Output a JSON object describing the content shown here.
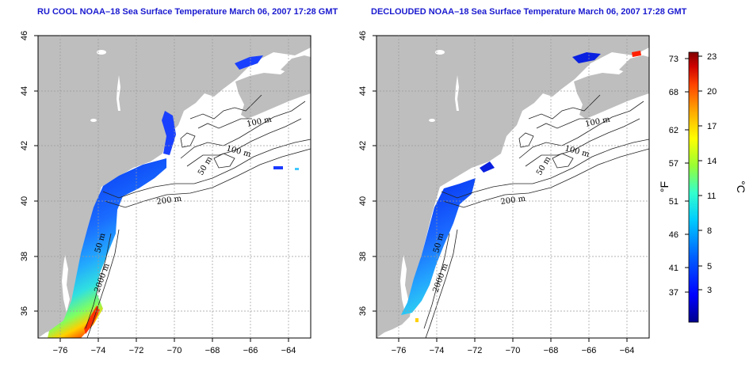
{
  "panels": [
    {
      "title": "RU COOL NOAA–18 Sea Surface Temperature March 06, 2007 17:28 GMT",
      "contour_labels": [
        "100 m",
        "100 m",
        "50 m",
        "200 m",
        "50 m",
        "2000 m"
      ]
    },
    {
      "title": "DECLOUDED NOAA–18 Sea Surface Temperature March 06, 2007 17:28 GMT",
      "contour_labels": [
        "100 m",
        "100 m",
        "50 m",
        "200 m",
        "50 m",
        "2000 m"
      ]
    }
  ],
  "axes": {
    "lon_ticks": [
      "−76",
      "−74",
      "−72",
      "−70",
      "−68",
      "−66",
      "−64"
    ],
    "lat_ticks": [
      "36",
      "38",
      "40",
      "42",
      "44",
      "46"
    ],
    "lon_range": [
      -77.2,
      -63.0
    ],
    "lat_range": [
      35.0,
      46.0
    ]
  },
  "colorbar": {
    "left_label": "°F",
    "right_label": "°C",
    "f_ticks": [
      "73",
      "68",
      "62",
      "57",
      "51",
      "46",
      "41",
      "37"
    ],
    "c_ticks": [
      "23",
      "20",
      "17",
      "14",
      "11",
      "8",
      "5",
      "3"
    ],
    "colors": [
      "#00008c",
      "#0000ff",
      "#0066ff",
      "#00ccff",
      "#33ffcc",
      "#99ff33",
      "#ffff00",
      "#ffaa00",
      "#ff4400",
      "#cc0000",
      "#800000"
    ]
  },
  "colors": {
    "land": "#bebebe",
    "title": "#1a1ad0",
    "grid": "#aaaaaa"
  }
}
